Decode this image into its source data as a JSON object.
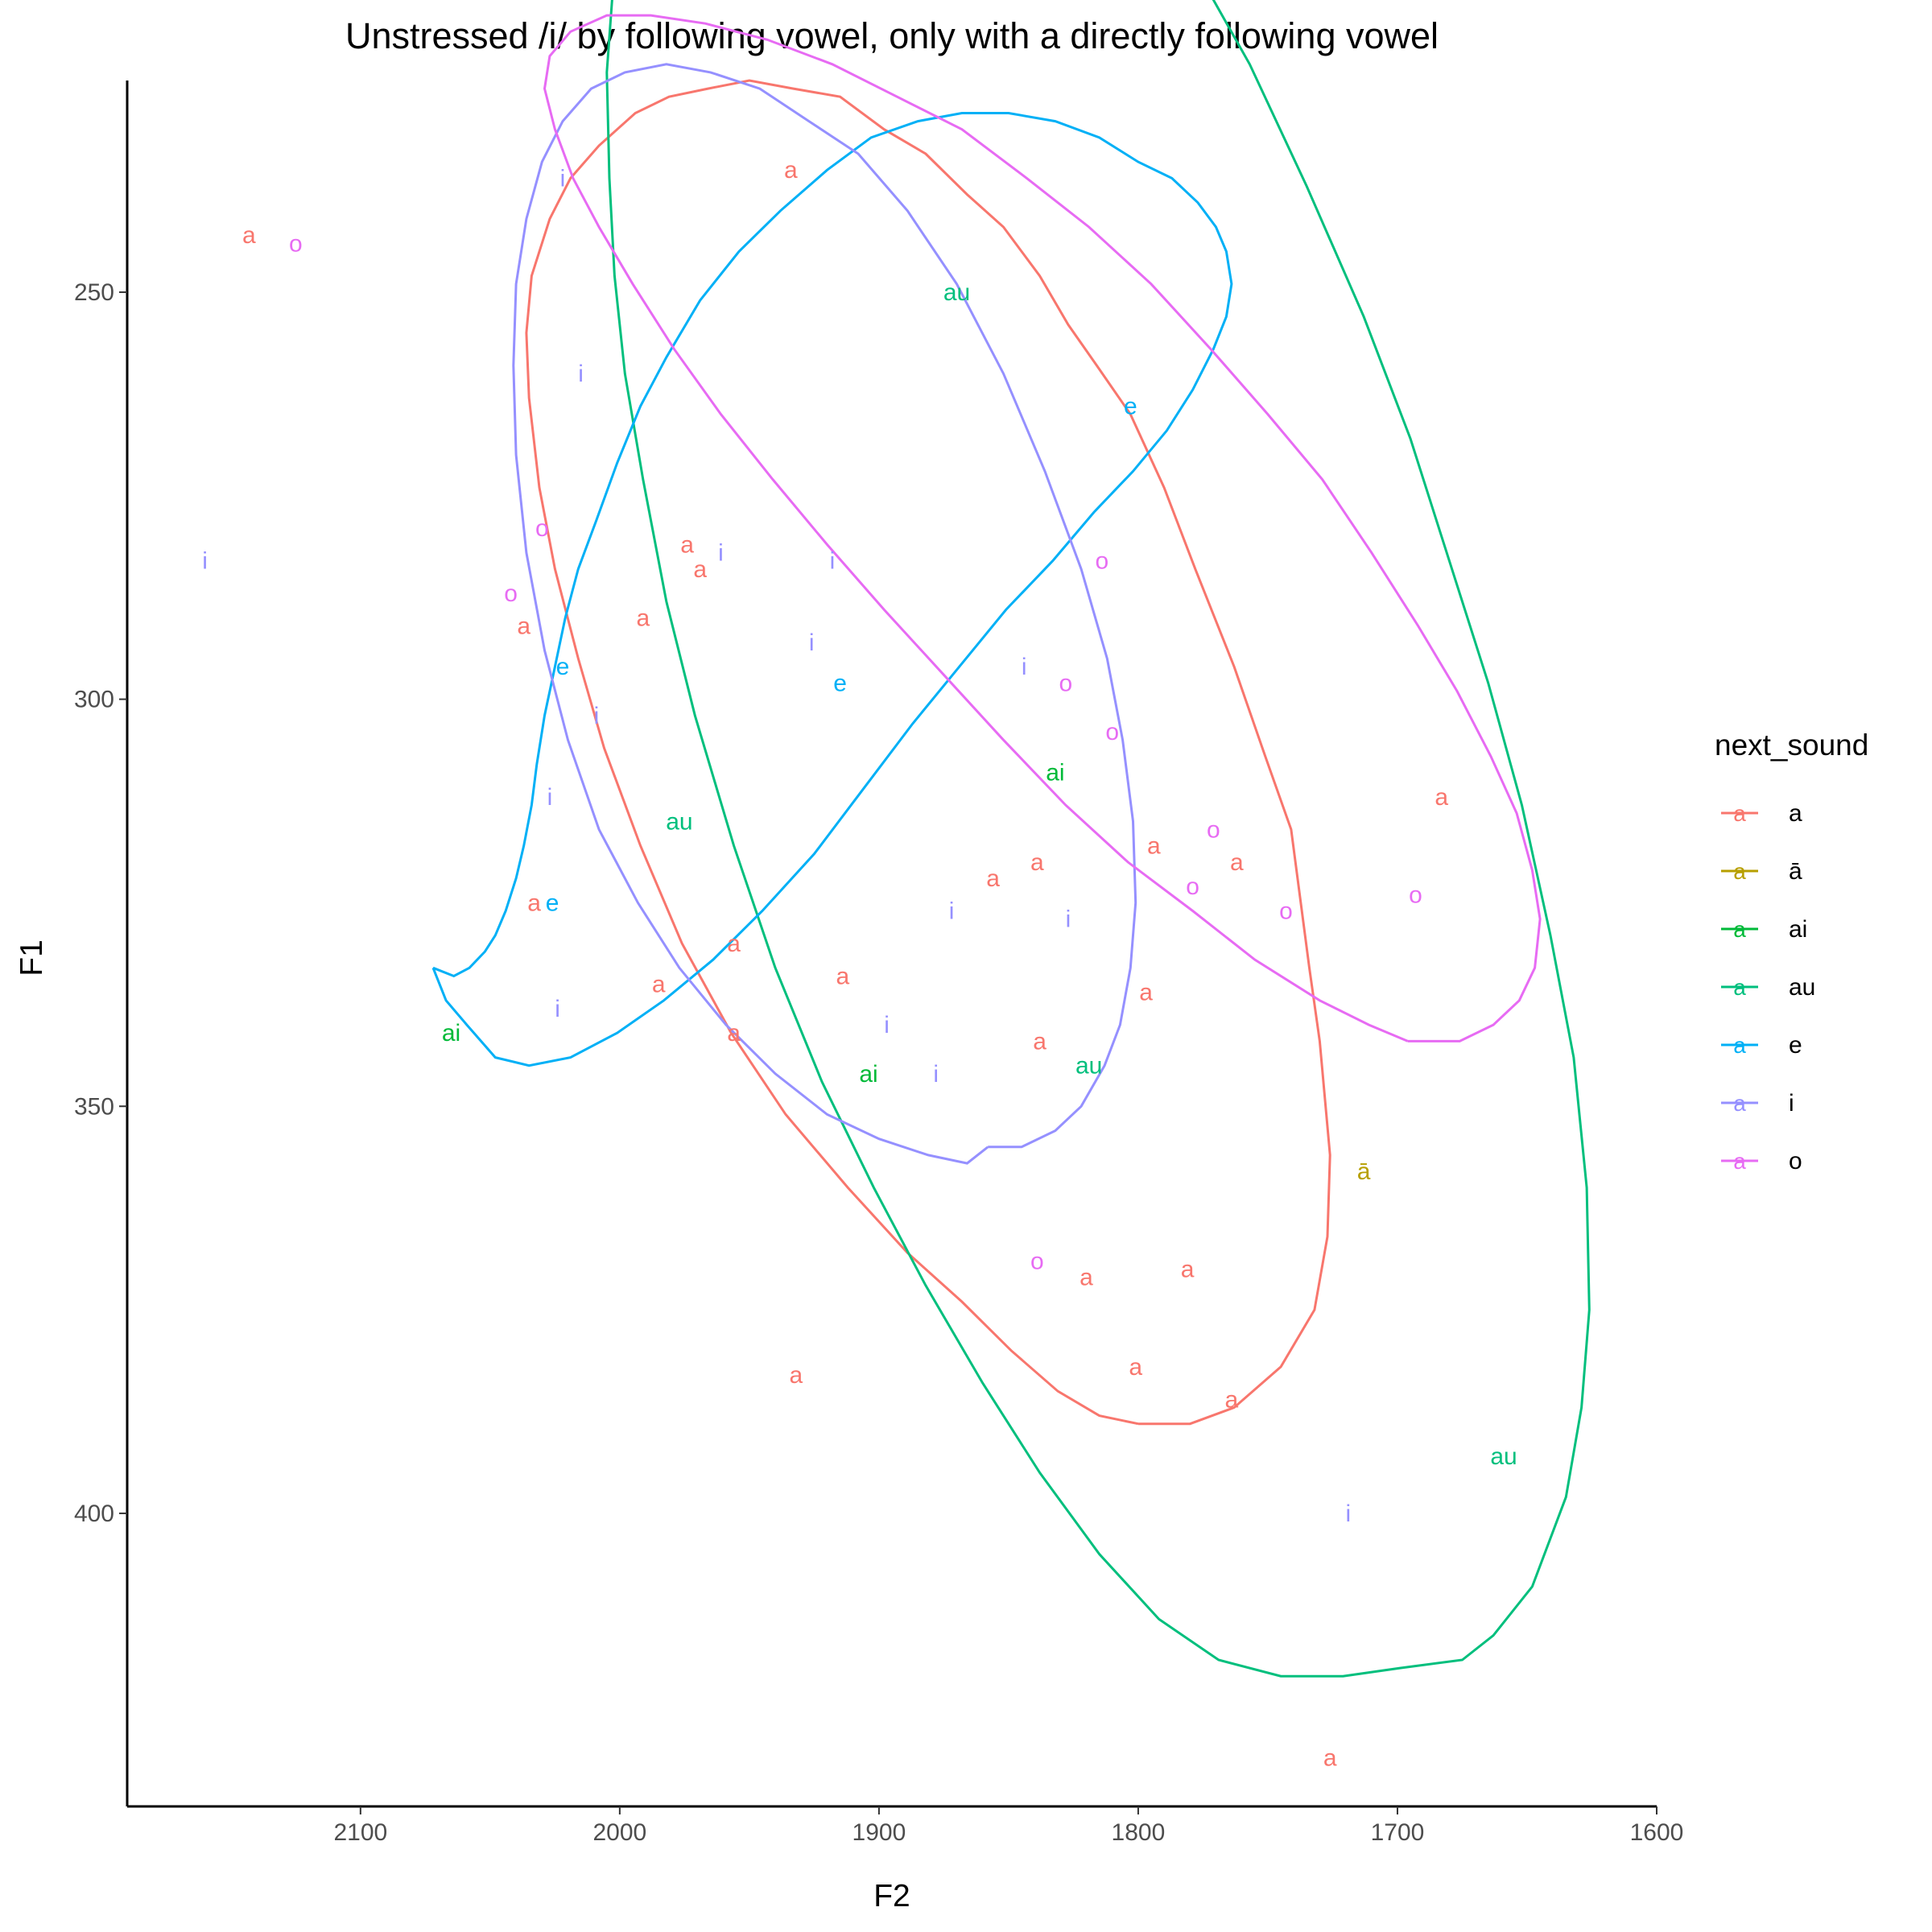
{
  "chart_data": {
    "type": "scatter",
    "title": "Unstressed /i/ by following vowel, only with a directly following vowel",
    "xlabel": "F2",
    "ylabel": "F1",
    "x_reversed": true,
    "y_reversed": true,
    "xlim": [
      2190,
      1600
    ],
    "ylim": [
      224,
      436
    ],
    "x_ticks": [
      2100,
      2000,
      1900,
      1800,
      1700,
      1600
    ],
    "y_ticks": [
      250,
      300,
      350,
      400
    ],
    "grid": false,
    "legend": {
      "title": "next_sound",
      "placement": "right",
      "key_glyph": "a"
    },
    "series": [
      {
        "name": "a",
        "color": "#F8766D",
        "points": [
          [
            2143,
            243
          ],
          [
            1934,
            235
          ],
          [
            1974,
            281
          ],
          [
            1969,
            284
          ],
          [
            1991,
            290
          ],
          [
            2037,
            291
          ],
          [
            1683,
            312
          ],
          [
            1794,
            318
          ],
          [
            1762,
            320
          ],
          [
            1839,
            320
          ],
          [
            1856,
            322
          ],
          [
            2033,
            325
          ],
          [
            1956,
            330
          ],
          [
            1914,
            334
          ],
          [
            1985,
            335
          ],
          [
            1797,
            336
          ],
          [
            1956,
            341
          ],
          [
            1838,
            342
          ],
          [
            1820,
            371
          ],
          [
            1781,
            370
          ],
          [
            1932,
            383
          ],
          [
            1801,
            382
          ],
          [
            1764,
            386
          ],
          [
            1726,
            430
          ]
        ]
      },
      {
        "name": "ā",
        "color": "#B79F00",
        "points": [
          [
            1713,
            358
          ]
        ]
      },
      {
        "name": "ai",
        "color": "#00BA38",
        "points": [
          [
            1832,
            309
          ],
          [
            2065,
            341
          ],
          [
            1904,
            346
          ]
        ]
      },
      {
        "name": "au",
        "color": "#00BF7D",
        "points": [
          [
            1870,
            250
          ],
          [
            1977,
            315
          ],
          [
            1819,
            345
          ],
          [
            1659,
            393
          ]
        ]
      },
      {
        "name": "e",
        "color": "#00B0F6",
        "points": [
          [
            1803,
            264
          ],
          [
            2022,
            296
          ],
          [
            1915,
            298
          ],
          [
            2026,
            325
          ]
        ]
      },
      {
        "name": "i",
        "color": "#9590FF",
        "points": [
          [
            2022,
            236
          ],
          [
            2015,
            260
          ],
          [
            2160,
            283
          ],
          [
            1961,
            282
          ],
          [
            1918,
            283
          ],
          [
            1926,
            293
          ],
          [
            1844,
            296
          ],
          [
            2009,
            302
          ],
          [
            2027,
            312
          ],
          [
            1872,
            326
          ],
          [
            1827,
            327
          ],
          [
            2024,
            338
          ],
          [
            1897,
            340
          ],
          [
            1878,
            346
          ],
          [
            1719,
            400
          ]
        ]
      },
      {
        "name": "o",
        "color": "#E76BF3",
        "points": [
          [
            2125,
            244
          ],
          [
            2030,
            279
          ],
          [
            2042,
            287
          ],
          [
            1814,
            283
          ],
          [
            1828,
            298
          ],
          [
            1810,
            304
          ],
          [
            1771,
            316
          ],
          [
            1779,
            323
          ],
          [
            1743,
            326
          ],
          [
            1693,
            324
          ],
          [
            1839,
            369
          ]
        ]
      }
    ],
    "ellipses": [
      {
        "name": "a",
        "color": "#F8766D",
        "points": [
          [
            1800,
            389
          ],
          [
            1780,
            389
          ],
          [
            1763,
            387
          ],
          [
            1745,
            382
          ],
          [
            1732,
            375
          ],
          [
            1727,
            366
          ],
          [
            1726,
            356
          ],
          [
            1730,
            342
          ],
          [
            1734,
            333
          ],
          [
            1741,
            316
          ],
          [
            1751,
            307
          ],
          [
            1763,
            296
          ],
          [
            1778,
            284
          ],
          [
            1790,
            274
          ],
          [
            1803,
            265
          ],
          [
            1816,
            259
          ],
          [
            1827,
            254
          ],
          [
            1838,
            248
          ],
          [
            1852,
            242
          ],
          [
            1866,
            238
          ],
          [
            1882,
            233
          ],
          [
            1898,
            230
          ],
          [
            1915,
            226
          ],
          [
            1933,
            225
          ],
          [
            1950,
            224
          ],
          [
            1966,
            225
          ],
          [
            1981,
            226
          ],
          [
            1994,
            228
          ],
          [
            2008,
            232
          ],
          [
            2019,
            236
          ],
          [
            2027,
            241
          ],
          [
            2034,
            248
          ],
          [
            2036,
            255
          ],
          [
            2035,
            263
          ],
          [
            2031,
            274
          ],
          [
            2025,
            284
          ],
          [
            2016,
            295
          ],
          [
            2006,
            306
          ],
          [
            1992,
            318
          ],
          [
            1976,
            330
          ],
          [
            1957,
            341
          ],
          [
            1936,
            351
          ],
          [
            1912,
            360
          ],
          [
            1889,
            368
          ],
          [
            1868,
            374
          ],
          [
            1849,
            380
          ],
          [
            1831,
            385
          ],
          [
            1815,
            388
          ],
          [
            1800,
            389
          ]
        ]
      },
      {
        "name": "au",
        "color": "#00BF7D",
        "points": [
          [
            1699,
            419
          ],
          [
            1675,
            418
          ],
          [
            1663,
            415
          ],
          [
            1648,
            409
          ],
          [
            1635,
            398
          ],
          [
            1629,
            387
          ],
          [
            1626,
            375
          ],
          [
            1627,
            360
          ],
          [
            1632,
            344
          ],
          [
            1641,
            329
          ],
          [
            1652,
            313
          ],
          [
            1665,
            298
          ],
          [
            1680,
            283
          ],
          [
            1695,
            268
          ],
          [
            1713,
            253
          ],
          [
            1735,
            237
          ],
          [
            1757,
            222
          ],
          [
            1780,
            209
          ],
          [
            1801,
            198
          ],
          [
            1821,
            188
          ],
          [
            1841,
            180
          ],
          [
            1861,
            173
          ],
          [
            1880,
            168
          ],
          [
            1898,
            165
          ],
          [
            1915,
            163
          ],
          [
            1932,
            164
          ],
          [
            1949,
            167
          ],
          [
            1965,
            172
          ],
          [
            1978,
            179
          ],
          [
            1989,
            188
          ],
          [
            1997,
            199
          ],
          [
            2002,
            210
          ],
          [
            2005,
            223
          ],
          [
            2004,
            236
          ],
          [
            2002,
            248
          ],
          [
            1998,
            260
          ],
          [
            1991,
            273
          ],
          [
            1982,
            288
          ],
          [
            1971,
            302
          ],
          [
            1956,
            318
          ],
          [
            1940,
            333
          ],
          [
            1922,
            347
          ],
          [
            1902,
            360
          ],
          [
            1882,
            372
          ],
          [
            1860,
            384
          ],
          [
            1838,
            395
          ],
          [
            1815,
            405
          ],
          [
            1792,
            413
          ],
          [
            1769,
            418
          ],
          [
            1745,
            420
          ],
          [
            1721,
            420
          ],
          [
            1699,
            419
          ]
        ]
      },
      {
        "name": "e",
        "color": "#00B0F6",
        "points": [
          [
            2072,
            333
          ],
          [
            2064,
            334
          ],
          [
            2058,
            333
          ],
          [
            2052,
            331
          ],
          [
            2048,
            329
          ],
          [
            2044,
            326
          ],
          [
            2040,
            322
          ],
          [
            2037,
            318
          ],
          [
            2034,
            313
          ],
          [
            2032,
            308
          ],
          [
            2029,
            302
          ],
          [
            2025,
            296
          ],
          [
            2021,
            290
          ],
          [
            2016,
            284
          ],
          [
            2009,
            278
          ],
          [
            2001,
            271
          ],
          [
            1992,
            264
          ],
          [
            1982,
            258
          ],
          [
            1969,
            251
          ],
          [
            1954,
            245
          ],
          [
            1938,
            240
          ],
          [
            1920,
            235
          ],
          [
            1903,
            231
          ],
          [
            1885,
            229
          ],
          [
            1868,
            228
          ],
          [
            1850,
            228
          ],
          [
            1832,
            229
          ],
          [
            1815,
            231
          ],
          [
            1800,
            234
          ],
          [
            1787,
            236
          ],
          [
            1777,
            239
          ],
          [
            1770,
            242
          ],
          [
            1766,
            245
          ],
          [
            1764,
            249
          ],
          [
            1766,
            253
          ],
          [
            1771,
            257
          ],
          [
            1779,
            262
          ],
          [
            1789,
            267
          ],
          [
            1802,
            272
          ],
          [
            1817,
            277
          ],
          [
            1833,
            283
          ],
          [
            1851,
            289
          ],
          [
            1869,
            296
          ],
          [
            1887,
            303
          ],
          [
            1906,
            311
          ],
          [
            1925,
            319
          ],
          [
            1945,
            326
          ],
          [
            1964,
            332
          ],
          [
            1983,
            337
          ],
          [
            2001,
            341
          ],
          [
            2019,
            344
          ],
          [
            2035,
            345
          ],
          [
            2048,
            344
          ],
          [
            2059,
            340
          ],
          [
            2067,
            337
          ],
          [
            2072,
            333
          ]
        ]
      },
      {
        "name": "i",
        "color": "#9590FF",
        "points": [
          [
            1858,
            355
          ],
          [
            1845,
            355
          ],
          [
            1832,
            353
          ],
          [
            1822,
            350
          ],
          [
            1813,
            345
          ],
          [
            1807,
            340
          ],
          [
            1803,
            333
          ],
          [
            1801,
            325
          ],
          [
            1802,
            315
          ],
          [
            1806,
            305
          ],
          [
            1812,
            295
          ],
          [
            1822,
            284
          ],
          [
            1836,
            272
          ],
          [
            1852,
            260
          ],
          [
            1870,
            249
          ],
          [
            1889,
            240
          ],
          [
            1908,
            233
          ],
          [
            1927,
            229
          ],
          [
            1946,
            225
          ],
          [
            1965,
            223
          ],
          [
            1982,
            222
          ],
          [
            1998,
            223
          ],
          [
            2011,
            225
          ],
          [
            2022,
            229
          ],
          [
            2030,
            234
          ],
          [
            2036,
            241
          ],
          [
            2040,
            249
          ],
          [
            2041,
            259
          ],
          [
            2040,
            270
          ],
          [
            2036,
            282
          ],
          [
            2029,
            294
          ],
          [
            2020,
            305
          ],
          [
            2008,
            316
          ],
          [
            1993,
            325
          ],
          [
            1977,
            333
          ],
          [
            1959,
            340
          ],
          [
            1940,
            346
          ],
          [
            1920,
            351
          ],
          [
            1900,
            354
          ],
          [
            1881,
            356
          ],
          [
            1866,
            357
          ],
          [
            1858,
            355
          ]
        ]
      },
      {
        "name": "o",
        "color": "#E76BF3",
        "points": [
          [
            1696,
            342
          ],
          [
            1676,
            342
          ],
          [
            1663,
            340
          ],
          [
            1653,
            337
          ],
          [
            1647,
            333
          ],
          [
            1645,
            327
          ],
          [
            1648,
            321
          ],
          [
            1654,
            314
          ],
          [
            1664,
            307
          ],
          [
            1677,
            299
          ],
          [
            1692,
            291
          ],
          [
            1710,
            282
          ],
          [
            1729,
            273
          ],
          [
            1750,
            265
          ],
          [
            1772,
            257
          ],
          [
            1795,
            249
          ],
          [
            1819,
            242
          ],
          [
            1843,
            236
          ],
          [
            1868,
            230
          ],
          [
            1893,
            226
          ],
          [
            1918,
            222
          ],
          [
            1943,
            219
          ],
          [
            1967,
            217
          ],
          [
            1988,
            216
          ],
          [
            2005,
            216
          ],
          [
            2019,
            218
          ],
          [
            2027,
            221
          ],
          [
            2029,
            225
          ],
          [
            2025,
            230
          ],
          [
            2018,
            236
          ],
          [
            2008,
            242
          ],
          [
            1995,
            249
          ],
          [
            1979,
            257
          ],
          [
            1961,
            265
          ],
          [
            1941,
            273
          ],
          [
            1920,
            281
          ],
          [
            1898,
            289
          ],
          [
            1875,
            297
          ],
          [
            1852,
            305
          ],
          [
            1828,
            313
          ],
          [
            1804,
            320
          ],
          [
            1779,
            326
          ],
          [
            1755,
            332
          ],
          [
            1730,
            337
          ],
          [
            1711,
            340
          ],
          [
            1696,
            342
          ]
        ]
      }
    ]
  }
}
